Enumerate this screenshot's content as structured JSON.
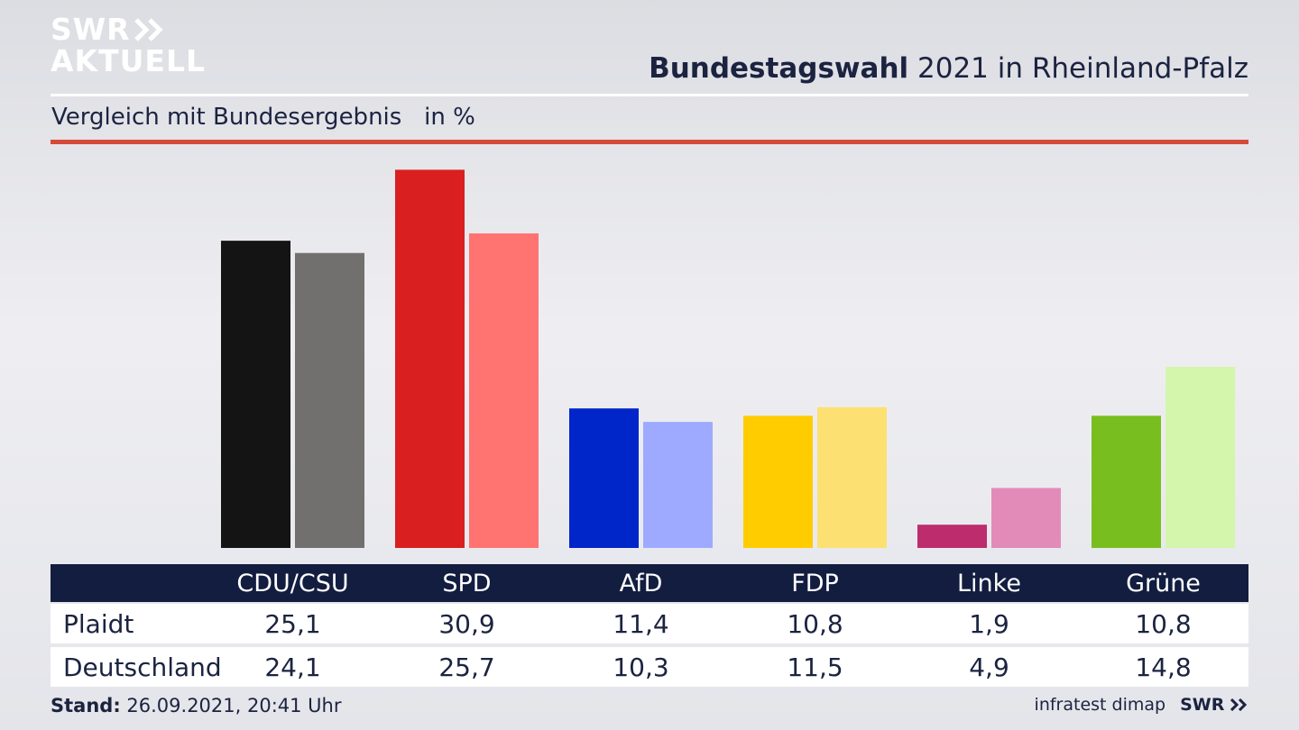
{
  "brand": {
    "line1": "SWR",
    "line2": "AKTUELL",
    "footer_logo": "SWR"
  },
  "header": {
    "title_bold": "Bundestagswahl",
    "title_rest": " 2021 in Rheinland-Pfalz",
    "subtitle": "Vergleich mit Bundesergebnis   in %"
  },
  "colors": {
    "accent_red_rule": "#d64a3a",
    "table_header": "#121d40",
    "cdu": [
      "#141414",
      "#72706e"
    ],
    "spd": [
      "#d91f1f",
      "#ff7470"
    ],
    "afd": [
      "#0025c9",
      "#9eaaff"
    ],
    "fdp": [
      "#ffcc00",
      "#fde072"
    ],
    "linke": [
      "#bd2c6c",
      "#e28bb9"
    ],
    "gruene": [
      "#78be1e",
      "#d4f6ac"
    ]
  },
  "chart_data": {
    "type": "bar",
    "title": "Bundestagswahl 2021 in Rheinland-Pfalz",
    "subtitle": "Vergleich mit Bundesergebnis   in %",
    "categories": [
      "CDU/CSU",
      "SPD",
      "AfD",
      "FDP",
      "Linke",
      "Grüne"
    ],
    "series": [
      {
        "name": "Plaidt",
        "values": [
          25.1,
          30.9,
          11.4,
          10.8,
          1.9,
          10.8
        ],
        "labels": [
          "25,1",
          "30,9",
          "11,4",
          "10,8",
          "1,9",
          "10,8"
        ]
      },
      {
        "name": "Deutschland",
        "values": [
          24.1,
          25.7,
          10.3,
          11.5,
          4.9,
          14.8
        ],
        "labels": [
          "24,1",
          "25,7",
          "10,3",
          "11,5",
          "4,9",
          "14,8"
        ]
      }
    ],
    "ylim": [
      0,
      31
    ]
  },
  "footer": {
    "stand_label": "Stand:",
    "stand_value": " 26.09.2021, 20:41 Uhr",
    "source": "infratest dimap"
  }
}
